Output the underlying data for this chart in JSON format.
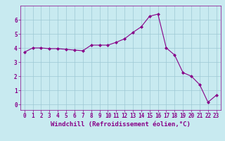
{
  "x": [
    0,
    1,
    2,
    3,
    4,
    5,
    6,
    7,
    8,
    9,
    10,
    11,
    12,
    13,
    14,
    15,
    16,
    17,
    18,
    19,
    20,
    21,
    22,
    23
  ],
  "y": [
    3.7,
    4.0,
    4.0,
    3.95,
    3.95,
    3.9,
    3.85,
    3.8,
    4.2,
    4.2,
    4.2,
    4.4,
    4.65,
    5.1,
    5.5,
    6.25,
    6.4,
    4.0,
    3.5,
    2.25,
    2.0,
    1.4,
    0.15,
    0.65
  ],
  "line_color": "#880088",
  "marker": "D",
  "marker_size": 2,
  "bg_color": "#c8eaf0",
  "grid_color": "#9dc8d4",
  "xlabel": "Windchill (Refroidissement éolien,°C)",
  "xlim": [
    -0.5,
    23.5
  ],
  "ylim": [
    -0.4,
    7.0
  ],
  "yticks": [
    0,
    1,
    2,
    3,
    4,
    5,
    6
  ],
  "xticks": [
    0,
    1,
    2,
    3,
    4,
    5,
    6,
    7,
    8,
    9,
    10,
    11,
    12,
    13,
    14,
    15,
    16,
    17,
    18,
    19,
    20,
    21,
    22,
    23
  ],
  "tick_label_size": 5.5,
  "xlabel_size": 6.5
}
